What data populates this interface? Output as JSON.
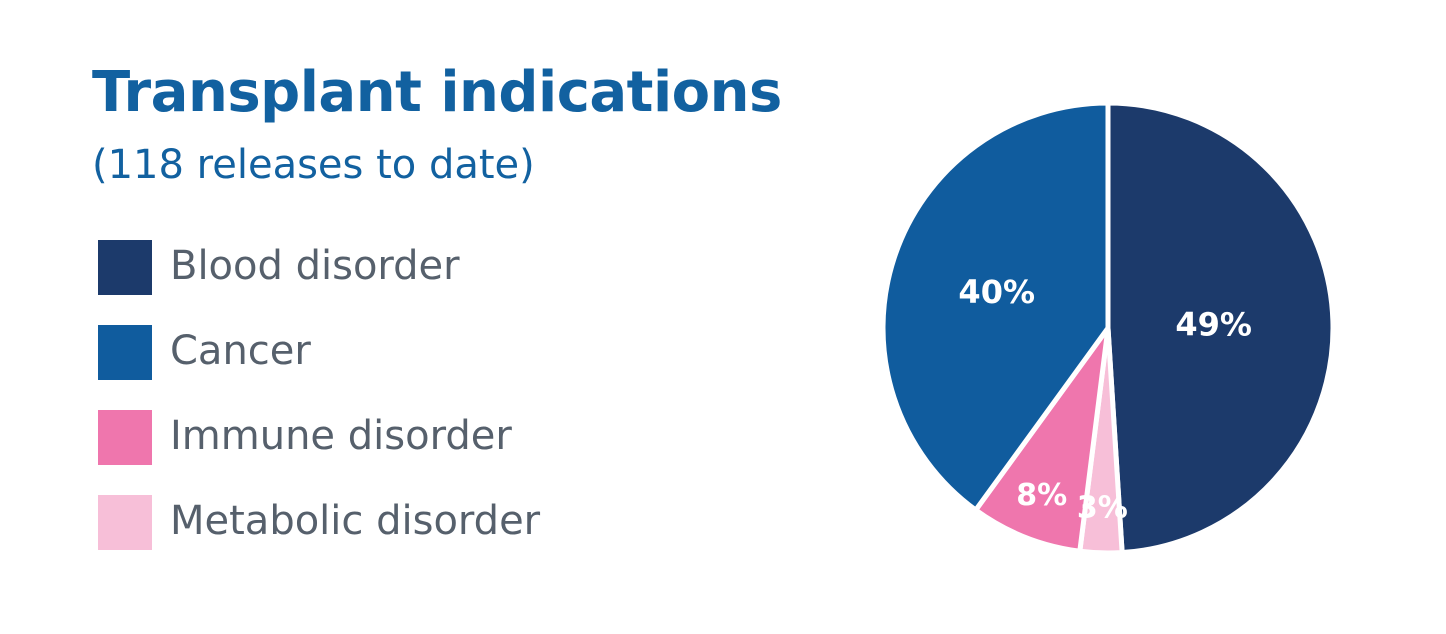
{
  "title": "Transplant indications",
  "subtitle": "(118 releases to date)",
  "colors": {
    "title": "#1261a0",
    "legend_text": "#56606c",
    "label_text": "#ffffff"
  },
  "chart_data": {
    "type": "pie",
    "title": "Transplant indications",
    "subtitle": "(118 releases to date)",
    "legend_position": "left",
    "slices": [
      {
        "label": "Blood disorder",
        "value": 49,
        "display": "49%",
        "color": "#1c3a6b"
      },
      {
        "label": "Cancer",
        "value": 40,
        "display": "40%",
        "color": "#105c9e"
      },
      {
        "label": "Immune disorder",
        "value": 8,
        "display": "8%",
        "color": "#ef76ad"
      },
      {
        "label": "Metabolic disorder",
        "value": 3,
        "display": "3%",
        "color": "#f7bfd8"
      }
    ]
  }
}
